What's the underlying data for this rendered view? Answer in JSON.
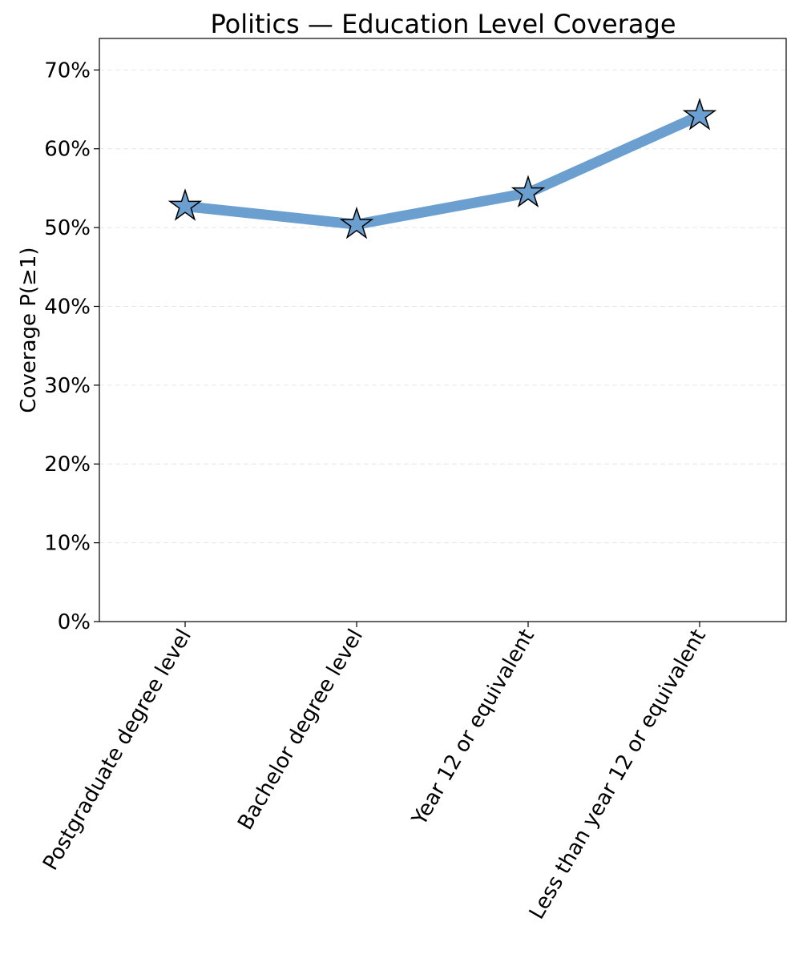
{
  "chart_data": {
    "type": "line",
    "title": "Politics — Education Level Coverage",
    "xlabel": "",
    "ylabel": "Coverage P(≥1)",
    "categories": [
      "Postgraduate degree level",
      "Bachelor degree level",
      "Year 12 or equivalent",
      "Less than year 12 or equivalent"
    ],
    "series": [
      {
        "values": [
          0.527,
          0.504,
          0.544,
          0.642
        ],
        "color": "#6a9fcf",
        "marker": "star"
      }
    ],
    "ylim": [
      0,
      0.74
    ],
    "yticks": [
      0,
      0.1,
      0.2,
      0.3,
      0.4,
      0.5,
      0.6,
      0.7
    ],
    "ytick_labels": [
      "0%",
      "10%",
      "20%",
      "30%",
      "40%",
      "50%",
      "60%",
      "70%"
    ],
    "grid": "y-dashed",
    "legend": "none"
  }
}
